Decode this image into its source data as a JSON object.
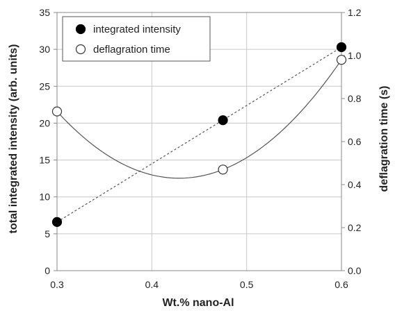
{
  "chart_data": {
    "type": "scatter",
    "title": "",
    "xlabel": "Wt.% nano-Al",
    "ylabel_left": "total integrated intensity (arb. units)",
    "ylabel_right": "deflagration time (s)",
    "xlim": [
      0.3,
      0.6
    ],
    "ylim_left": [
      0,
      35
    ],
    "ylim_right": [
      0.0,
      1.2
    ],
    "x_ticks": [
      "0.3",
      "0.4",
      "0.5",
      "0.6"
    ],
    "y_left_ticks": [
      "0",
      "5",
      "10",
      "15",
      "20",
      "25",
      "30",
      "35"
    ],
    "y_right_ticks": [
      "0.0",
      "0.2",
      "0.4",
      "0.6",
      "0.8",
      "1.0",
      "1.2"
    ],
    "grid": "vertical and horizontal major gridlines",
    "legend_position": "top-left",
    "series": [
      {
        "name": "integrated intensity",
        "axis": "left",
        "marker": "filled circle",
        "line": "dotted linear fit",
        "x": [
          0.3,
          0.475,
          0.6
        ],
        "y": [
          6.6,
          20.4,
          30.3
        ]
      },
      {
        "name": "deflagration time",
        "axis": "right",
        "marker": "open circle",
        "line": "solid quadratic fit",
        "x": [
          0.3,
          0.475,
          0.6
        ],
        "y": [
          0.74,
          0.47,
          0.98
        ]
      }
    ],
    "colors": {
      "marker": "#000000",
      "fit_line": "#555555",
      "grid": "#c8c8c8",
      "axis": "#888888"
    }
  }
}
